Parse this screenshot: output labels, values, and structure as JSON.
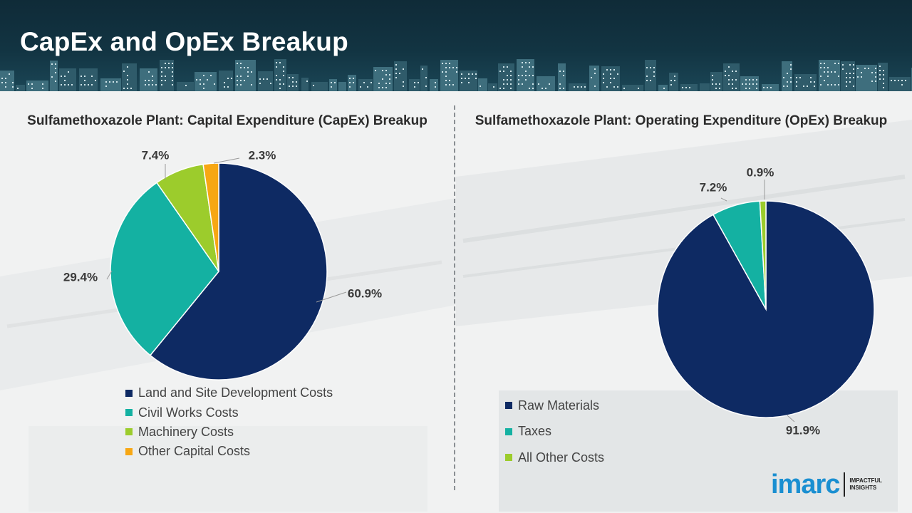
{
  "header": {
    "title": "CapEx and OpEx Breakup"
  },
  "logo": {
    "wordmark": "imarc",
    "tagline_line1": "IMPACTFUL",
    "tagline_line2": "INSIGHTS"
  },
  "chart_data": [
    {
      "type": "pie",
      "title": "Sulfamethoxazole Plant: Capital Expenditure (CapEx) Breakup",
      "categories": [
        "Land and Site Development Costs",
        "Civil Works Costs",
        "Machinery Costs",
        "Other Capital Costs"
      ],
      "values": [
        60.9,
        29.4,
        7.4,
        2.3
      ],
      "labels": [
        "60.9%",
        "29.4%",
        "7.4%",
        "2.3%"
      ],
      "colors": [
        "#0e2a63",
        "#14b1a2",
        "#9ccc2c",
        "#f7a713"
      ],
      "legend": "bottom"
    },
    {
      "type": "pie",
      "title": "Sulfamethoxazole Plant: Operating Expenditure (OpEx) Breakup",
      "categories": [
        "Raw Materials",
        "Taxes",
        "All Other Costs"
      ],
      "values": [
        91.9,
        7.2,
        0.9
      ],
      "labels": [
        "91.9%",
        "7.2%",
        "0.9%"
      ],
      "colors": [
        "#0e2a63",
        "#14b1a2",
        "#9ccc2c"
      ],
      "legend": "bottom-left"
    }
  ]
}
